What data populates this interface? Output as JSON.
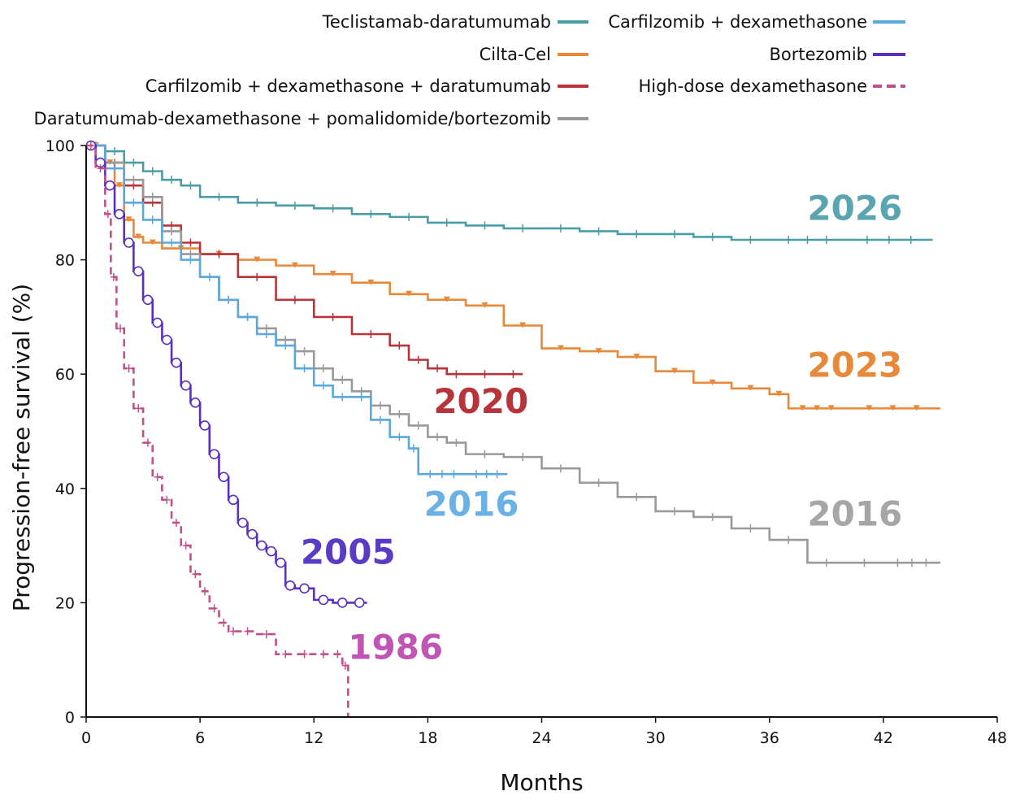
{
  "chart_data": {
    "type": "line",
    "title": "",
    "xlabel": "Months",
    "ylabel": "Progression-free survival (%)",
    "xlim": [
      0,
      48
    ],
    "ylim": [
      0,
      100
    ],
    "xticks": [
      "0",
      "6",
      "12",
      "18",
      "24",
      "30",
      "36",
      "42",
      "48"
    ],
    "yticks": [
      "0",
      "20",
      "40",
      "60",
      "80",
      "100"
    ],
    "grid": false,
    "legend_position": "top",
    "series": [
      {
        "name": "Teclistamab-daratumumab",
        "year": "2026",
        "color": "#4a9da6",
        "dash": "solid",
        "censor": "cross",
        "x": [
          0,
          1,
          2,
          3,
          4,
          5,
          6,
          8,
          10,
          12,
          14,
          16,
          18,
          20,
          22,
          24,
          26,
          28,
          30,
          32,
          34,
          36,
          40,
          44.6
        ],
        "y": [
          100,
          99,
          97,
          95.5,
          94,
          93,
          91,
          90,
          89.5,
          89,
          88,
          87.5,
          86.5,
          86,
          85.5,
          85.5,
          85,
          84.5,
          84.5,
          84,
          83.5,
          83.5,
          83.5,
          83.5
        ]
      },
      {
        "name": "Cilta-Cel",
        "year": "2023",
        "color": "#e8893a",
        "dash": "solid",
        "censor": "triangle",
        "x": [
          0,
          1,
          1.5,
          2,
          2.5,
          3,
          4,
          6,
          8,
          10,
          12,
          14,
          16,
          18,
          20,
          22,
          24,
          26,
          28,
          30,
          32,
          34,
          36,
          37,
          40,
          45
        ],
        "y": [
          100,
          97,
          93,
          87,
          84,
          83,
          82,
          81,
          80,
          79,
          77.5,
          76,
          74,
          73,
          72,
          68.5,
          64.5,
          64,
          63,
          60.5,
          58.5,
          57.5,
          56.5,
          54,
          54,
          54
        ]
      },
      {
        "name": "Carfilzomib + dexamethasone + daratumumab",
        "year": "2020",
        "color": "#b7353a",
        "dash": "solid",
        "censor": "cross",
        "x": [
          0,
          1,
          2,
          3,
          4,
          5,
          6,
          8,
          10,
          12,
          14,
          16,
          17,
          18,
          19,
          20,
          22,
          23
        ],
        "y": [
          100,
          97,
          93,
          90,
          86,
          83,
          81,
          77,
          73,
          70,
          67,
          65,
          62.5,
          61,
          60,
          60,
          60,
          60
        ]
      },
      {
        "name": "Daratumumab-dexamethasone + pomalidomide/bortezomib",
        "year": "2016",
        "color": "#999999",
        "dash": "solid",
        "censor": "cross",
        "x": [
          0,
          1,
          2,
          3,
          4,
          5,
          6,
          7,
          8,
          9,
          10,
          11,
          12,
          13,
          14,
          15,
          16,
          17,
          18,
          19,
          20,
          22,
          24,
          26,
          28,
          30,
          32,
          34,
          36,
          38,
          40,
          42,
          45
        ],
        "y": [
          100,
          97,
          94,
          91,
          85,
          81,
          77,
          73,
          70,
          68,
          66,
          64,
          61,
          59,
          57,
          54.5,
          53,
          51,
          49,
          48,
          46,
          45.5,
          43.5,
          41,
          38.5,
          36,
          35,
          33,
          31,
          27,
          27,
          27,
          27
        ]
      },
      {
        "name": "Carfilzomib + dexamethasone",
        "year": "2016",
        "color": "#5aa8dc",
        "dash": "solid",
        "censor": "cross",
        "x": [
          0,
          1,
          2,
          3,
          4,
          5,
          6,
          7,
          8,
          9,
          10,
          11,
          12,
          13,
          14,
          15,
          16,
          17,
          17.5,
          20,
          22.2
        ],
        "y": [
          100,
          96,
          90,
          87,
          83,
          80,
          77,
          73,
          70,
          67,
          65,
          61,
          58,
          56,
          56,
          52,
          49,
          47,
          42.5,
          42.5,
          42.5
        ]
      },
      {
        "name": "Bortezomib",
        "year": "2005",
        "color": "#5a2fbe",
        "dash": "solid",
        "censor": "circle",
        "x": [
          0,
          0.5,
          1,
          1.5,
          2,
          2.5,
          3,
          3.5,
          4,
          4.5,
          5,
          5.5,
          6,
          6.5,
          7,
          7.5,
          8,
          8.5,
          9,
          9.5,
          10,
          10.5,
          11,
          12,
          13,
          14,
          14.8
        ],
        "y": [
          100,
          97,
          93,
          88,
          83,
          78,
          73,
          69,
          66,
          62,
          58,
          55,
          51,
          46,
          42,
          38,
          34,
          32,
          30,
          29,
          27,
          23,
          22.5,
          20.5,
          20,
          20,
          20
        ]
      },
      {
        "name": "High-dose dexamethasone",
        "year": "1986",
        "color": "#c0508a",
        "dash": "dashed",
        "censor": "cross",
        "x": [
          0,
          0.5,
          1,
          1.3,
          1.6,
          2,
          2.5,
          3,
          3.5,
          4,
          4.5,
          5,
          5.5,
          6,
          6.5,
          7,
          7.5,
          8,
          9,
          10,
          11,
          12,
          13,
          13.5,
          13.8
        ],
        "y": [
          100,
          96,
          88,
          77,
          68,
          61,
          54,
          48,
          42,
          38,
          34,
          30,
          25,
          22,
          19,
          16.5,
          15,
          15,
          14.5,
          11,
          11,
          11,
          11,
          9,
          0
        ]
      }
    ],
    "legend": {
      "left_column": [
        "Teclistamab-daratumumab",
        "Cilta-Cel",
        "Carfilzomib + dexamethasone + daratumumab",
        "Daratumumab-dexamethasone + pomalidomide/bortezomib"
      ],
      "right_column": [
        "Carfilzomib + dexamethasone",
        "Bortezomib",
        "High-dose dexamethasone"
      ]
    },
    "annotations": [
      {
        "text": "2026",
        "series": "Teclistamab-daratumumab",
        "x": 40.5,
        "y": 87,
        "color": "#5aa5b0"
      },
      {
        "text": "2023",
        "series": "Cilta-Cel",
        "x": 40.5,
        "y": 59.5,
        "color": "#e8893a"
      },
      {
        "text": "2020",
        "series": "Carfilzomib + dexamethasone + daratumumab",
        "x": 20.8,
        "y": 53.2,
        "color": "#b7353a"
      },
      {
        "text": "2016",
        "series": "Carfilzomib + dexamethasone",
        "x": 20.3,
        "y": 35.2,
        "color": "#6ab2e6"
      },
      {
        "text": "2016",
        "series": "Daratumumab-dexamethasone + pomalidomide/bortezomib",
        "x": 40.5,
        "y": 33.5,
        "color": "#a6a6a6"
      },
      {
        "text": "2005",
        "series": "Bortezomib",
        "x": 13.8,
        "y": 26.8,
        "color": "#5a3bc4"
      },
      {
        "text": "1986",
        "series": "High-dose dexamethasone",
        "x": 16.3,
        "y": 10.2,
        "color": "#c055b6"
      }
    ]
  }
}
